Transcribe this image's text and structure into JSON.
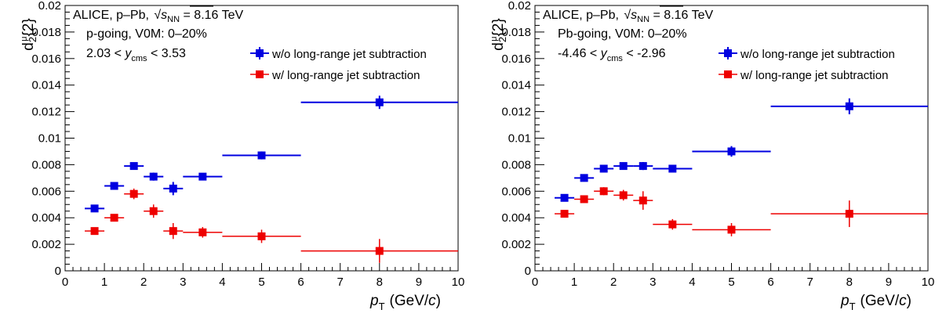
{
  "colors": {
    "without": "#0000e0",
    "with": "#ee0000",
    "axis": "#000000"
  },
  "legend": {
    "without": "w/o long-range jet subtraction",
    "with": "w/  long-range jet subtraction"
  },
  "chart_data": [
    {
      "type": "scatter",
      "panel": "left",
      "ylabel": "d₂^μ{2}",
      "xlabel_var": "p",
      "xlabel_sub": "T",
      "xlabel_units": "(GeV/c)",
      "xlim": [
        0,
        10
      ],
      "ylim": [
        0,
        0.02
      ],
      "xticks": [
        "0",
        "1",
        "2",
        "3",
        "4",
        "5",
        "6",
        "7",
        "8",
        "9",
        "10"
      ],
      "yticks": [
        "0",
        "0.002",
        "0.004",
        "0.006",
        "0.008",
        "0.01",
        "0.012",
        "0.014",
        "0.016",
        "0.018",
        "0.02"
      ],
      "annotations": {
        "system_prefix": "ALICE, p–Pb, ",
        "energy_var": "s",
        "energy_sub": "NN",
        "energy_value": " = 8.16 TeV",
        "selection": "p-going, V0M: 0–20%",
        "rapidity_low": "2.03 < ",
        "rapidity_var": "y",
        "rapidity_sub": "cms",
        "rapidity_high": " < 3.53"
      },
      "series": [
        {
          "name": "w/o long-range jet subtraction",
          "key": "without",
          "points": [
            {
              "x": 0.75,
              "xlo": 0.5,
              "xhi": 1.0,
              "y": 0.0047,
              "yerr": 0.0001
            },
            {
              "x": 1.25,
              "xlo": 1.0,
              "xhi": 1.5,
              "y": 0.0064,
              "yerr": 0.0002
            },
            {
              "x": 1.75,
              "xlo": 1.5,
              "xhi": 2.0,
              "y": 0.0079,
              "yerr": 0.0002
            },
            {
              "x": 2.25,
              "xlo": 2.0,
              "xhi": 2.5,
              "y": 0.0071,
              "yerr": 0.0003
            },
            {
              "x": 2.75,
              "xlo": 2.5,
              "xhi": 3.0,
              "y": 0.0062,
              "yerr": 0.0005
            },
            {
              "x": 3.5,
              "xlo": 3.0,
              "xhi": 4.0,
              "y": 0.0071,
              "yerr": 0.0002
            },
            {
              "x": 5.0,
              "xlo": 4.0,
              "xhi": 6.0,
              "y": 0.0087,
              "yerr": 0.0003
            },
            {
              "x": 8.0,
              "xlo": 6.0,
              "xhi": 10.0,
              "y": 0.0127,
              "yerr": 0.0005
            }
          ]
        },
        {
          "name": "w/  long-range jet subtraction",
          "key": "with",
          "points": [
            {
              "x": 0.75,
              "xlo": 0.5,
              "xhi": 1.0,
              "y": 0.003,
              "yerr": 0.0002
            },
            {
              "x": 1.25,
              "xlo": 1.0,
              "xhi": 1.5,
              "y": 0.004,
              "yerr": 0.0002
            },
            {
              "x": 1.75,
              "xlo": 1.5,
              "xhi": 2.0,
              "y": 0.0058,
              "yerr": 0.0004
            },
            {
              "x": 2.25,
              "xlo": 2.0,
              "xhi": 2.5,
              "y": 0.0045,
              "yerr": 0.0005
            },
            {
              "x": 2.75,
              "xlo": 2.5,
              "xhi": 3.0,
              "y": 0.003,
              "yerr": 0.0006
            },
            {
              "x": 3.5,
              "xlo": 3.0,
              "xhi": 4.0,
              "y": 0.0029,
              "yerr": 0.0004
            },
            {
              "x": 5.0,
              "xlo": 4.0,
              "xhi": 6.0,
              "y": 0.0026,
              "yerr": 0.0005
            },
            {
              "x": 8.0,
              "xlo": 6.0,
              "xhi": 10.0,
              "y": 0.0015,
              "yerr": 0.0009
            }
          ]
        }
      ]
    },
    {
      "type": "scatter",
      "panel": "right",
      "ylabel": "d₂^μ{2}",
      "xlabel_var": "p",
      "xlabel_sub": "T",
      "xlabel_units": "(GeV/c)",
      "xlim": [
        0,
        10
      ],
      "ylim": [
        0,
        0.02
      ],
      "xticks": [
        "0",
        "1",
        "2",
        "3",
        "4",
        "5",
        "6",
        "7",
        "8",
        "9",
        "10"
      ],
      "yticks": [
        "0",
        "0.002",
        "0.004",
        "0.006",
        "0.008",
        "0.01",
        "0.012",
        "0.014",
        "0.016",
        "0.018",
        "0.02"
      ],
      "annotations": {
        "system_prefix": "ALICE, p–Pb, ",
        "energy_var": "s",
        "energy_sub": "NN",
        "energy_value": " = 8.16 TeV",
        "selection": "Pb-going, V0M: 0–20%",
        "rapidity_low": "-4.46 < ",
        "rapidity_var": "y",
        "rapidity_sub": "cms",
        "rapidity_high": " < -2.96"
      },
      "series": [
        {
          "name": "w/o long-range jet subtraction",
          "key": "without",
          "points": [
            {
              "x": 0.75,
              "xlo": 0.5,
              "xhi": 1.0,
              "y": 0.0055,
              "yerr": 0.0001
            },
            {
              "x": 1.25,
              "xlo": 1.0,
              "xhi": 1.5,
              "y": 0.007,
              "yerr": 0.0002
            },
            {
              "x": 1.75,
              "xlo": 1.5,
              "xhi": 2.0,
              "y": 0.0077,
              "yerr": 0.0002
            },
            {
              "x": 2.25,
              "xlo": 2.0,
              "xhi": 2.5,
              "y": 0.0079,
              "yerr": 0.0002
            },
            {
              "x": 2.75,
              "xlo": 2.5,
              "xhi": 3.0,
              "y": 0.0079,
              "yerr": 0.0003
            },
            {
              "x": 3.5,
              "xlo": 3.0,
              "xhi": 4.0,
              "y": 0.0077,
              "yerr": 0.0002
            },
            {
              "x": 5.0,
              "xlo": 4.0,
              "xhi": 6.0,
              "y": 0.009,
              "yerr": 0.0004
            },
            {
              "x": 8.0,
              "xlo": 6.0,
              "xhi": 10.0,
              "y": 0.0124,
              "yerr": 0.0006
            }
          ]
        },
        {
          "name": "w/  long-range jet subtraction",
          "key": "with",
          "points": [
            {
              "x": 0.75,
              "xlo": 0.5,
              "xhi": 1.0,
              "y": 0.0043,
              "yerr": 0.0002
            },
            {
              "x": 1.25,
              "xlo": 1.0,
              "xhi": 1.5,
              "y": 0.0054,
              "yerr": 0.0002
            },
            {
              "x": 1.75,
              "xlo": 1.5,
              "xhi": 2.0,
              "y": 0.006,
              "yerr": 0.0003
            },
            {
              "x": 2.25,
              "xlo": 2.0,
              "xhi": 2.5,
              "y": 0.0057,
              "yerr": 0.0004
            },
            {
              "x": 2.75,
              "xlo": 2.5,
              "xhi": 3.0,
              "y": 0.0053,
              "yerr": 0.0007
            },
            {
              "x": 3.5,
              "xlo": 3.0,
              "xhi": 4.0,
              "y": 0.0035,
              "yerr": 0.0004
            },
            {
              "x": 5.0,
              "xlo": 4.0,
              "xhi": 6.0,
              "y": 0.0031,
              "yerr": 0.0005
            },
            {
              "x": 8.0,
              "xlo": 6.0,
              "xhi": 10.0,
              "y": 0.0043,
              "yerr": 0.001
            }
          ]
        }
      ]
    }
  ]
}
